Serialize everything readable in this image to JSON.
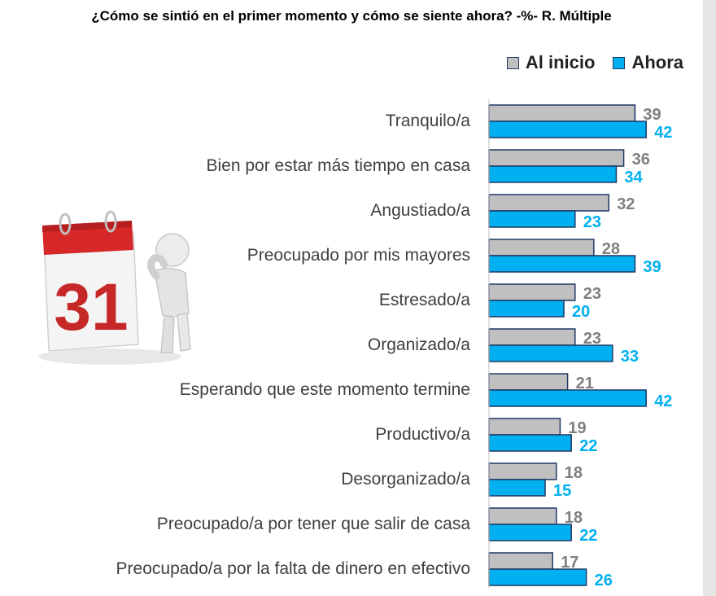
{
  "title": "¿Cómo se sintió en el primer momento y cómo se siente ahora? -%- R. Múltiple",
  "colors": {
    "al_inicio": "#c0c0c0",
    "ahora": "#00b0f0",
    "outline": "#1f3864",
    "al_inicio_text": "#7f7f7f",
    "ahora_text": "#00b0f0"
  },
  "legend": {
    "al_inicio": "Al inicio",
    "ahora": "Ahora"
  },
  "illustration": {
    "calendar_number": "31",
    "icon": "calendar-thinking-person-icon"
  },
  "chart_data": {
    "type": "bar",
    "orientation": "horizontal",
    "categories": [
      "Tranquilo/a",
      "Bien por estar más tiempo en casa",
      "Angustiado/a",
      "Preocupado por mis mayores",
      "Estresado/a",
      "Organizado/a",
      "Esperando que este momento termine",
      "Productivo/a",
      "Desorganizado/a",
      "Preocupado/a por tener que salir de casa",
      "Preocupado/a por la falta de dinero en efectivo"
    ],
    "series": [
      {
        "name": "Al inicio",
        "values": [
          39,
          36,
          32,
          28,
          23,
          23,
          21,
          19,
          18,
          18,
          17
        ]
      },
      {
        "name": "Ahora",
        "values": [
          42,
          34,
          23,
          39,
          20,
          33,
          42,
          22,
          15,
          22,
          26
        ]
      }
    ],
    "title": "¿Cómo se sintió en el primer momento y cómo se siente ahora? -%- R. Múltiple",
    "xlim": [
      0,
      45
    ],
    "grid": false,
    "legend_position": "top-right"
  }
}
